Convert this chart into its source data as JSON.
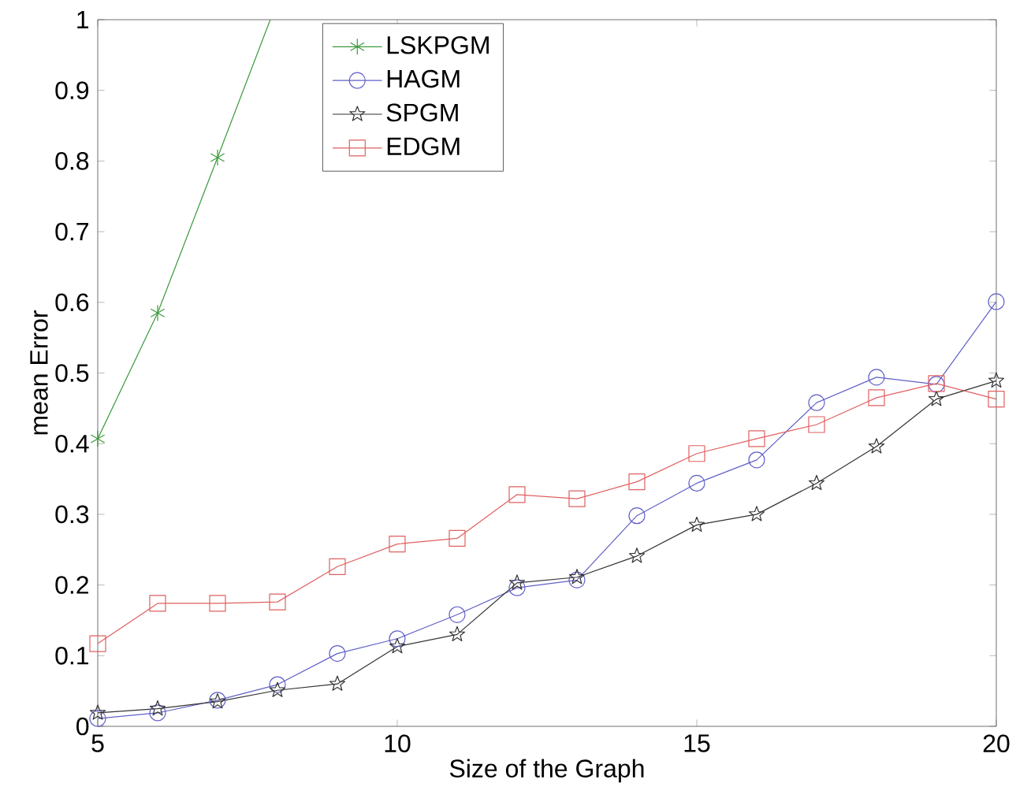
{
  "chart_data": {
    "type": "line",
    "xlabel": "Size of the Graph",
    "ylabel": "mean Error",
    "x": [
      5,
      6,
      7,
      8,
      9,
      10,
      11,
      12,
      13,
      14,
      15,
      16,
      17,
      18,
      19,
      20
    ],
    "xlim": [
      5,
      20
    ],
    "xticks": [
      5,
      10,
      15,
      20
    ],
    "ylim": [
      0,
      1
    ],
    "yticks": [
      0,
      0.1,
      0.2,
      0.3,
      0.4,
      0.5,
      0.6,
      0.7,
      0.8,
      0.9,
      1
    ],
    "legend": "top",
    "grid": false,
    "series": [
      {
        "name": "LSKPGM",
        "color": "#3a9a3a",
        "marker": "cross",
        "x": [
          5,
          6,
          7,
          7.88
        ],
        "values": [
          0.407,
          0.585,
          0.805,
          1
        ]
      },
      {
        "name": "HAGM",
        "color": "#6060c8",
        "marker": "circle",
        "values": [
          0.011,
          0.019,
          0.037,
          0.059,
          0.103,
          0.124,
          0.158,
          0.196,
          0.207,
          0.298,
          0.344,
          0.377,
          0.458,
          0.494,
          0.484,
          0.601
        ]
      },
      {
        "name": "SPGM",
        "color": "#333333",
        "marker": "star",
        "values": [
          0.019,
          0.025,
          0.035,
          0.051,
          0.06,
          0.113,
          0.13,
          0.203,
          0.211,
          0.241,
          0.285,
          0.3,
          0.344,
          0.396,
          0.463,
          0.489
        ]
      },
      {
        "name": "EDGM",
        "color": "#e06060",
        "marker": "square",
        "values": [
          0.117,
          0.174,
          0.174,
          0.176,
          0.226,
          0.258,
          0.266,
          0.328,
          0.322,
          0.346,
          0.386,
          0.407,
          0.427,
          0.465,
          0.485,
          0.463
        ]
      }
    ]
  }
}
